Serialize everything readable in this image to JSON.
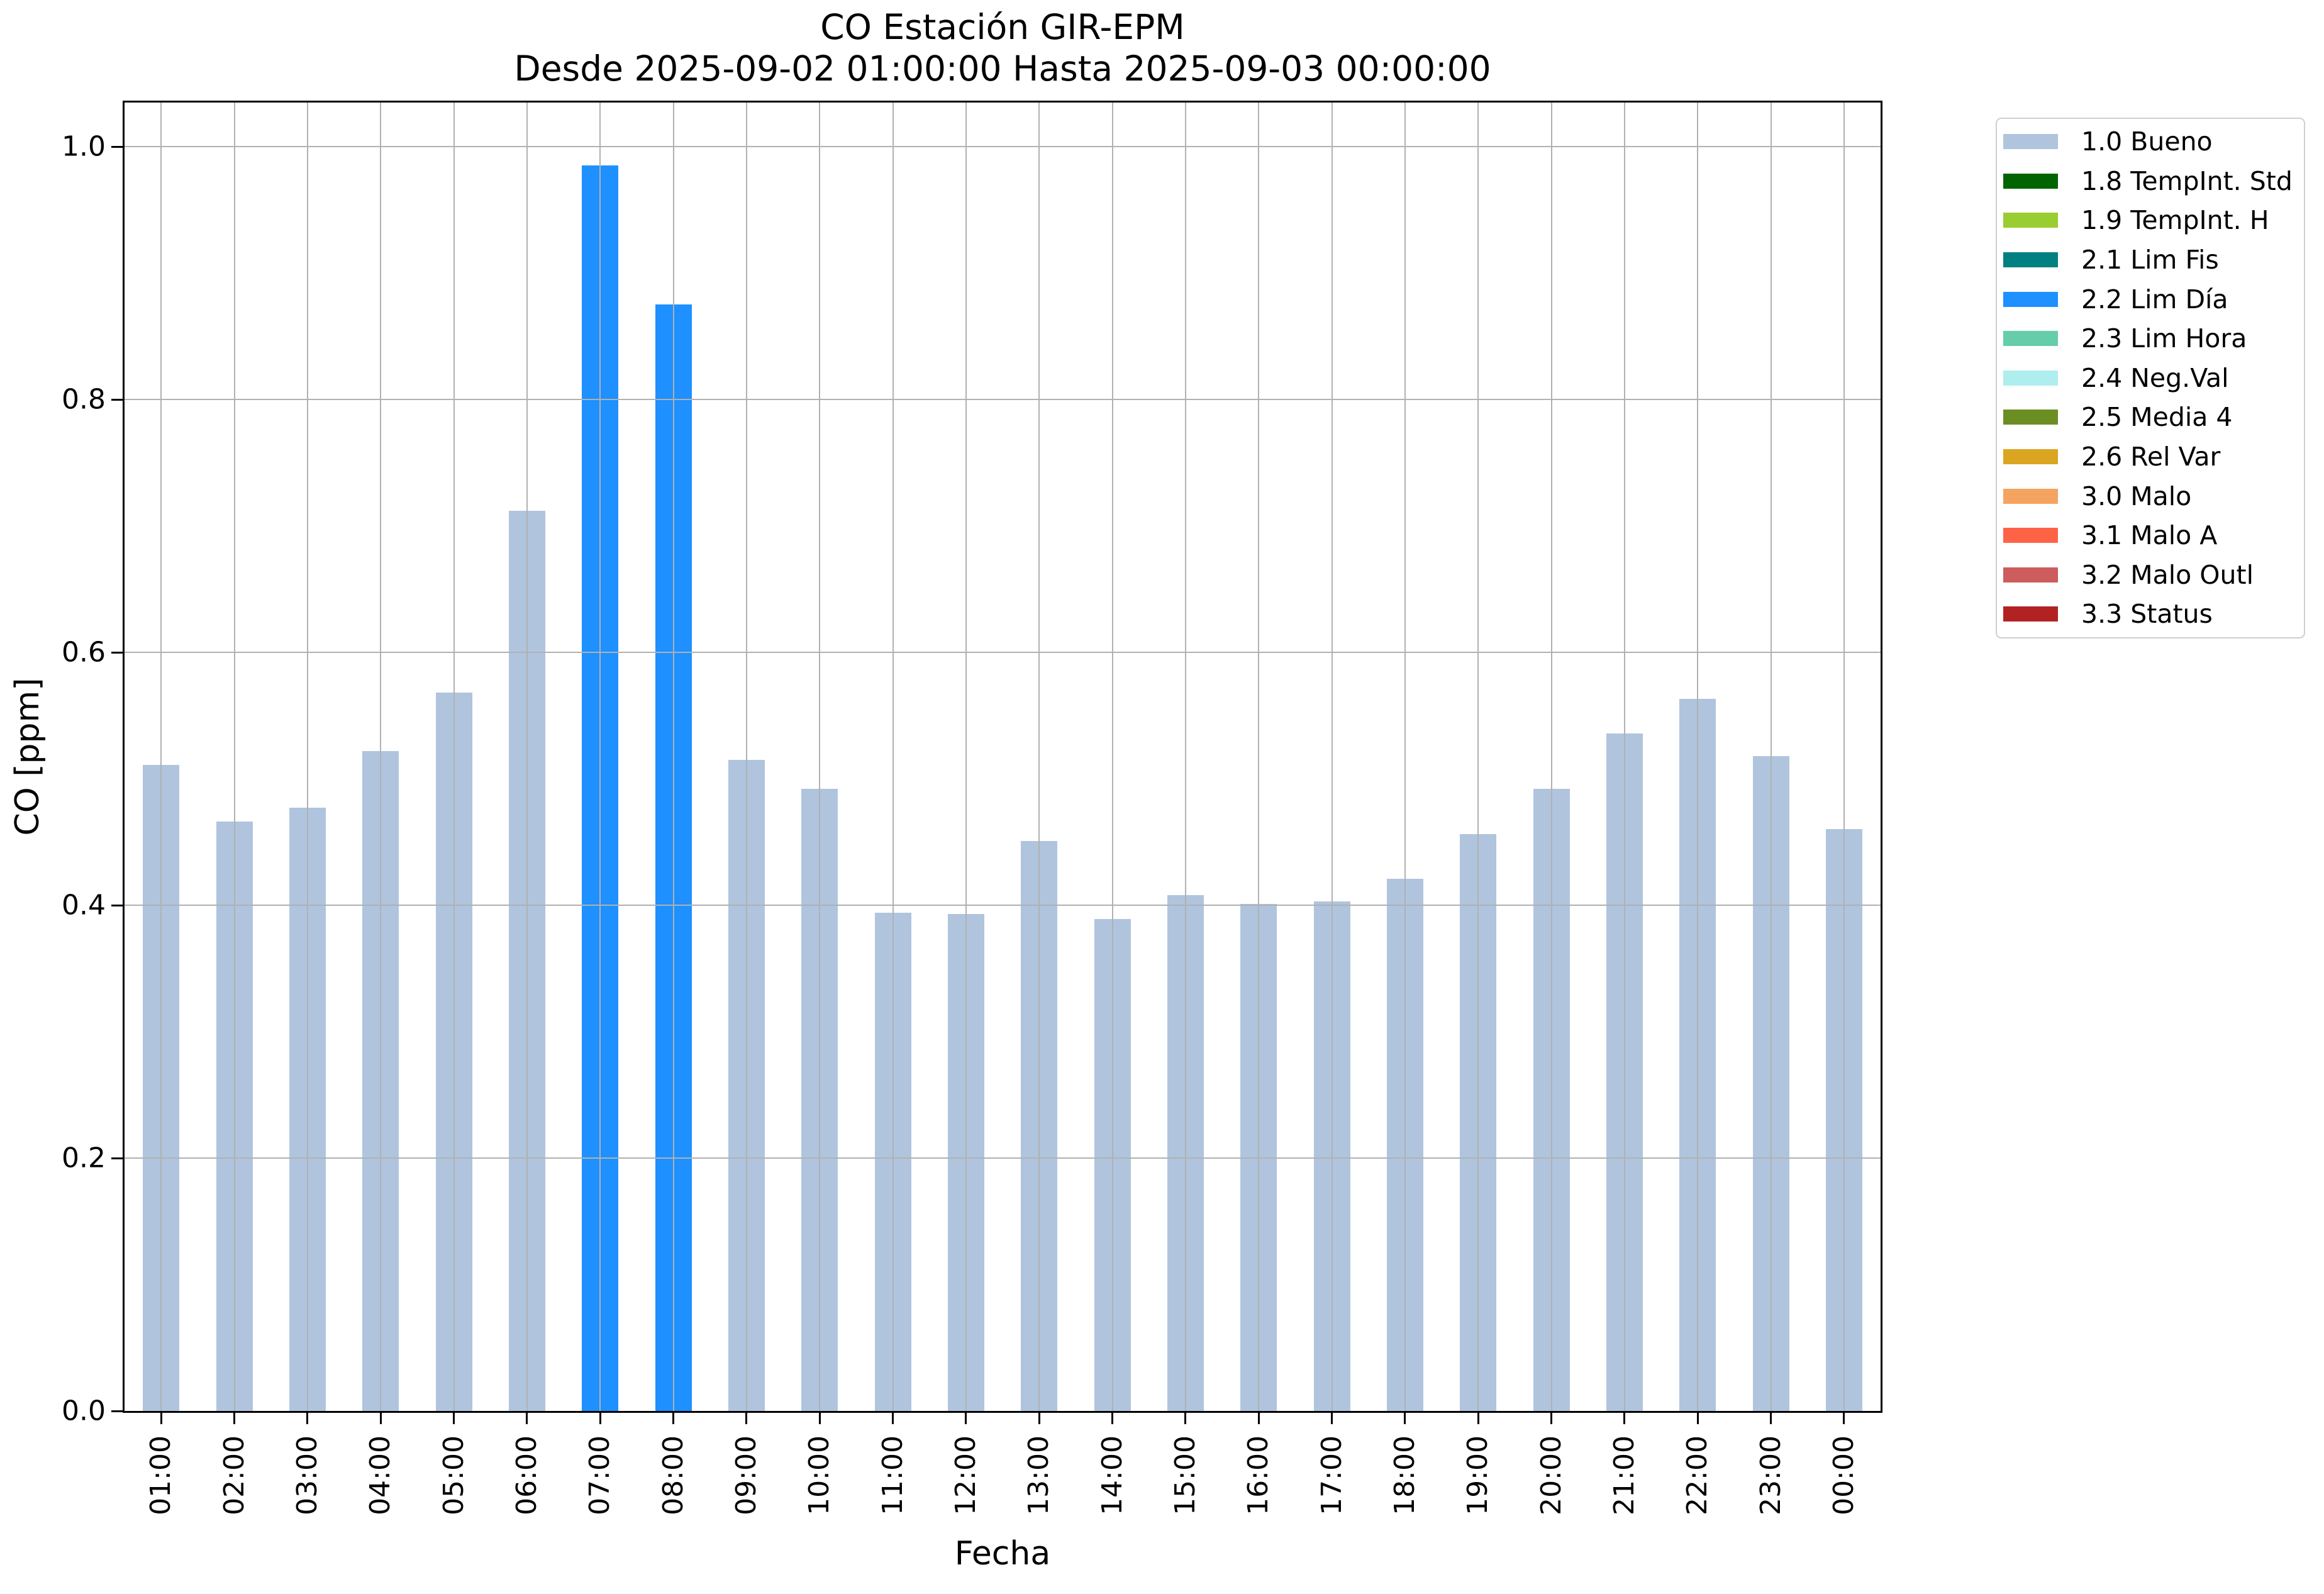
{
  "figure": {
    "title": "CO Estación GIR-EPM",
    "subtitle": "Desde 2025-09-02 01:00:00 Hasta 2025-09-03 00:00:00"
  },
  "chart_data": {
    "type": "bar",
    "title": "CO Estación GIR-EPM",
    "subtitle": "Desde 2025-09-02 01:00:00 Hasta 2025-09-03 00:00:00",
    "xlabel": "Fecha",
    "ylabel": "CO [ppm]",
    "ylim": [
      0,
      1.035
    ],
    "yticks": [
      0.0,
      0.2,
      0.4,
      0.6,
      0.8,
      1.0
    ],
    "grid": true,
    "legend_position": "outside-right",
    "categories": [
      "01:00",
      "02:00",
      "03:00",
      "04:00",
      "05:00",
      "06:00",
      "07:00",
      "08:00",
      "09:00",
      "10:00",
      "11:00",
      "12:00",
      "13:00",
      "14:00",
      "15:00",
      "16:00",
      "17:00",
      "18:00",
      "19:00",
      "20:00",
      "21:00",
      "22:00",
      "23:00",
      "00:00"
    ],
    "values": [
      0.511,
      0.466,
      0.477,
      0.522,
      0.568,
      0.712,
      0.985,
      0.875,
      0.515,
      0.492,
      0.394,
      0.393,
      0.451,
      0.389,
      0.408,
      0.401,
      0.403,
      0.421,
      0.456,
      0.492,
      0.536,
      0.563,
      0.518,
      0.46
    ],
    "bar_status_keys": [
      "bueno",
      "bueno",
      "bueno",
      "bueno",
      "bueno",
      "bueno",
      "lim-dia",
      "lim-dia",
      "bueno",
      "bueno",
      "bueno",
      "bueno",
      "bueno",
      "bueno",
      "bueno",
      "bueno",
      "bueno",
      "bueno",
      "bueno",
      "bueno",
      "bueno",
      "bueno",
      "bueno",
      "bueno"
    ]
  },
  "legend": {
    "entries": [
      {
        "key": "bueno",
        "label": "1.0 Bueno",
        "color": "#B0C4DE"
      },
      {
        "key": "tempint-std",
        "label": "1.8 TempInt. Std",
        "color": "#006400"
      },
      {
        "key": "tempint-h",
        "label": "1.9 TempInt. H",
        "color": "#9ACD32"
      },
      {
        "key": "lim-fis",
        "label": "2.1 Lim Fis",
        "color": "#008080"
      },
      {
        "key": "lim-dia",
        "label": "2.2 Lim Día",
        "color": "#1E90FF"
      },
      {
        "key": "lim-hora",
        "label": "2.3 Lim Hora",
        "color": "#66CDAA"
      },
      {
        "key": "neg-val",
        "label": "2.4 Neg.Val",
        "color": "#AFEEEE"
      },
      {
        "key": "media-4",
        "label": "2.5 Media 4",
        "color": "#6B8E23"
      },
      {
        "key": "rel-var",
        "label": "2.6 Rel Var",
        "color": "#DAA520"
      },
      {
        "key": "malo",
        "label": "3.0 Malo",
        "color": "#F4A460"
      },
      {
        "key": "malo-a",
        "label": "3.1 Malo A",
        "color": "#FF6347"
      },
      {
        "key": "malo-outl",
        "label": "3.2 Malo Outl",
        "color": "#CD5C5C"
      },
      {
        "key": "status",
        "label": "3.3 Status",
        "color": "#B22222"
      }
    ]
  },
  "colors": {
    "grid": "#B1B1B1",
    "spine": "#000000",
    "background": "#FFFFFF",
    "bar_default": "#B0C4DE",
    "bar_highlight": "#1E90FF"
  }
}
